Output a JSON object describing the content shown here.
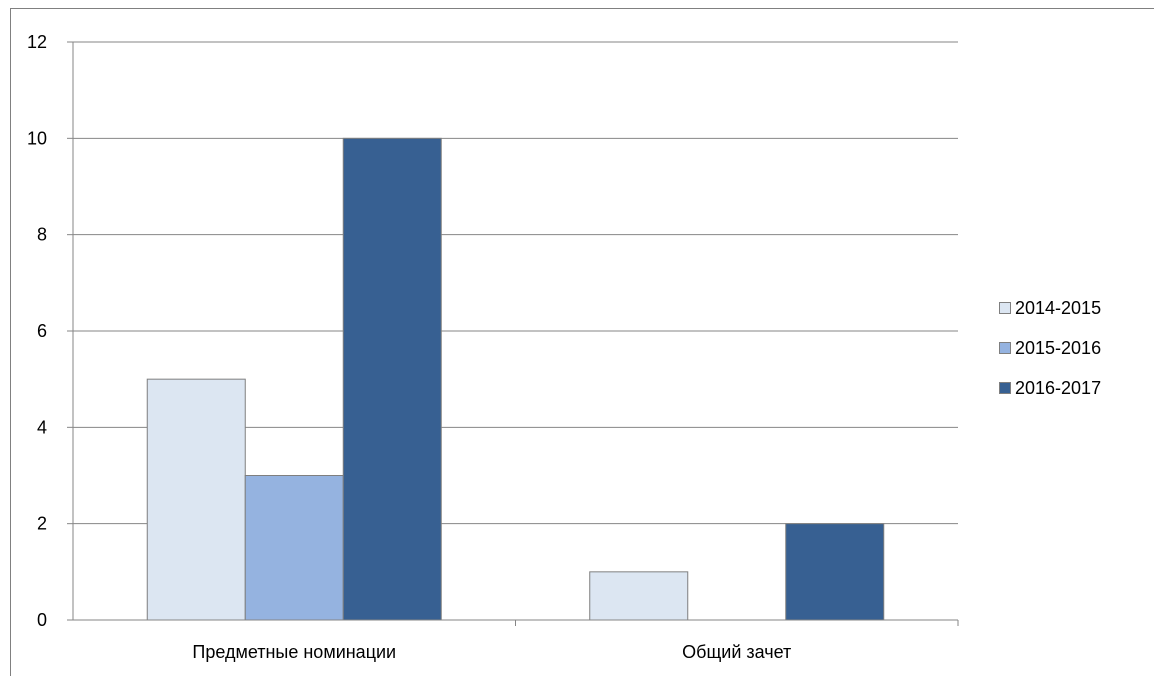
{
  "chart_data": {
    "type": "bar",
    "title": "",
    "xlabel": "",
    "ylabel": "",
    "categories": [
      "Предметные номинации",
      "Общий зачет"
    ],
    "series": [
      {
        "name": "2014-2015",
        "values": [
          5,
          1
        ],
        "color": "#dce6f2"
      },
      {
        "name": "2015-2016",
        "values": [
          3,
          0
        ],
        "color": "#95b3e0"
      },
      {
        "name": "2016-2017",
        "values": [
          10,
          2
        ],
        "color": "#376092"
      }
    ],
    "ylim": [
      0,
      12
    ],
    "yticks": [
      "0",
      "2",
      "4",
      "6",
      "8",
      "10",
      "12"
    ],
    "grid": true,
    "legend_position": "right"
  }
}
